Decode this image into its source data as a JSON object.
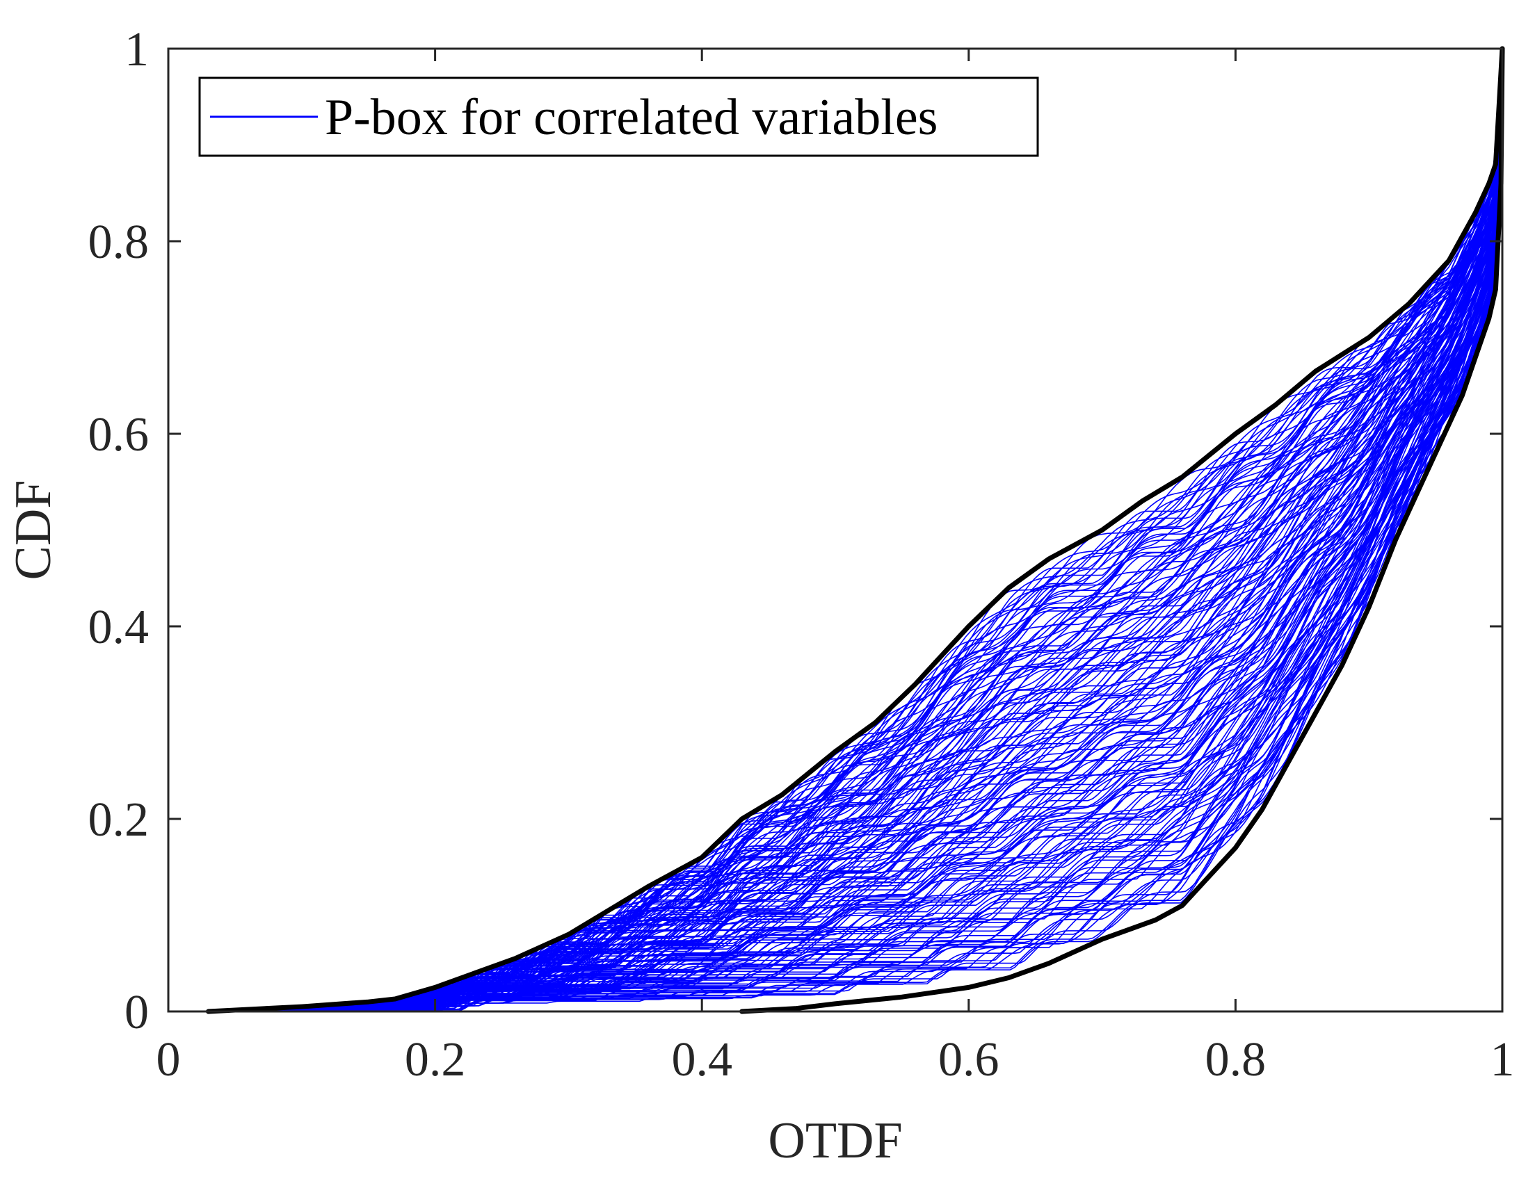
{
  "chart_data": {
    "type": "line",
    "title": "",
    "xlabel": "OTDF",
    "ylabel": "CDF",
    "xlim": [
      0,
      1
    ],
    "ylim": [
      0,
      1
    ],
    "x_ticks": [
      "0",
      "0.2",
      "0.4",
      "0.6",
      "0.8",
      "1"
    ],
    "y_ticks": [
      "0",
      "0.2",
      "0.4",
      "0.6",
      "0.8",
      "1"
    ],
    "grid": false,
    "legend": {
      "placement": "top-left",
      "entries": [
        "P-box for correlated variables"
      ]
    },
    "colors": {
      "band": "#0000ff",
      "bounds": "#000000",
      "axes": "#262626"
    },
    "series": [
      {
        "role": "upper-bound",
        "color": "#000000",
        "x": [
          0.03,
          0.1,
          0.15,
          0.17,
          0.2,
          0.23,
          0.26,
          0.3,
          0.33,
          0.36,
          0.4,
          0.43,
          0.46,
          0.5,
          0.53,
          0.56,
          0.58,
          0.6,
          0.63,
          0.66,
          0.7,
          0.73,
          0.76,
          0.8,
          0.83,
          0.86,
          0.9,
          0.93,
          0.96,
          0.98,
          0.99,
          0.995,
          1.0
        ],
        "y": [
          0.0,
          0.005,
          0.01,
          0.013,
          0.025,
          0.04,
          0.055,
          0.08,
          0.105,
          0.13,
          0.16,
          0.2,
          0.225,
          0.27,
          0.3,
          0.34,
          0.37,
          0.4,
          0.44,
          0.47,
          0.5,
          0.53,
          0.555,
          0.6,
          0.63,
          0.665,
          0.7,
          0.735,
          0.78,
          0.83,
          0.86,
          0.88,
          1.0
        ]
      },
      {
        "role": "lower-bound",
        "color": "#000000",
        "x": [
          0.43,
          0.47,
          0.5,
          0.55,
          0.6,
          0.63,
          0.66,
          0.7,
          0.74,
          0.76,
          0.78,
          0.8,
          0.82,
          0.84,
          0.86,
          0.88,
          0.9,
          0.92,
          0.94,
          0.96,
          0.97,
          0.98,
          0.99,
          0.995,
          0.999,
          1.0
        ],
        "y": [
          0.0,
          0.003,
          0.008,
          0.015,
          0.025,
          0.035,
          0.05,
          0.075,
          0.095,
          0.11,
          0.14,
          0.17,
          0.21,
          0.26,
          0.31,
          0.36,
          0.42,
          0.49,
          0.55,
          0.61,
          0.64,
          0.68,
          0.72,
          0.75,
          0.86,
          1.0
        ]
      }
    ],
    "band_samples": 160
  }
}
